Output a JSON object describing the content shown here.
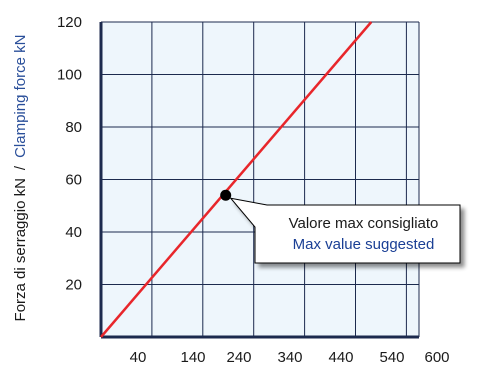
{
  "chart_data": {
    "type": "line",
    "x_ticks": [
      "40",
      "140",
      "240",
      "340",
      "440",
      "540",
      "600"
    ],
    "y_ticks": [
      20,
      40,
      60,
      80,
      100,
      120
    ],
    "ylim": [
      0,
      120
    ],
    "ylabel_it": "Forza di serraggio kN",
    "ylabel_sep": "/",
    "ylabel_en": "Clamping force kN",
    "grid": true,
    "series": [
      {
        "color": "#e8262b",
        "x": [
          0,
          5.31
        ],
        "y": [
          0,
          120
        ]
      }
    ],
    "marker": {
      "x": 2.45,
      "y": 54
    },
    "annotation": {
      "line1": "Valore max consigliato",
      "line2": "Max value suggested"
    }
  },
  "colors": {
    "plot_bg": "#eef6fc",
    "grid": "#1c2a4e",
    "series": "#e8262b",
    "ylabel_en": "#2a4f9a",
    "annotation_en": "#1a3f95",
    "axis_text": "#1a1a1a"
  }
}
